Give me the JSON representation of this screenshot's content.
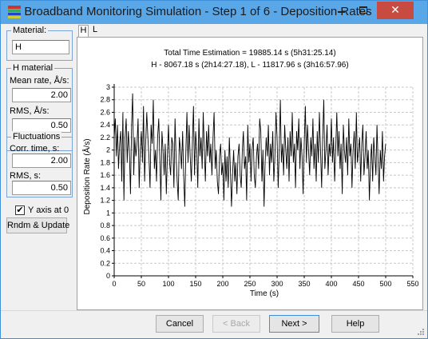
{
  "window": {
    "title": "Broadband Monitoring Simulation - Step 1 of 6 - Deposition Rates",
    "minimize_icon": "minimize-icon",
    "maximize_icon": "maximize-icon",
    "close_glyph": "✕",
    "titlebar_color": "#5aa7e8",
    "close_color": "#c74b40"
  },
  "left_panel": {
    "material_group": {
      "legend": "Material:",
      "value": "H"
    },
    "h_material_group": {
      "legend": "H material",
      "mean_rate_label": "Mean rate, Å/s:",
      "mean_rate_value": "2.00",
      "rms_label": "RMS, Å/s:",
      "rms_value": "0.50"
    },
    "fluctuations_group": {
      "legend": "Fluctuations",
      "corr_time_label": "Corr. time, s:",
      "corr_time_value": "2.00",
      "rms_label": "RMS, s:",
      "rms_value": "0.50"
    },
    "y_axis_checkbox": {
      "label": "Y axis at 0",
      "checked": true,
      "mark": "✔"
    },
    "rndm_button": "Rndm & Update"
  },
  "tabs": [
    {
      "label": "H",
      "active": true
    },
    {
      "label": "L",
      "active": false
    }
  ],
  "chart_data": {
    "type": "line",
    "title": "Total Time Estimation = 19885.14 s (5h31:25.14)",
    "subtitle": "H - 8067.18 s (2h14:27.18), L - 11817.96 s (3h16:57.96)",
    "xlabel": "Time (s)",
    "ylabel": "Deposition Rate (Å/s)",
    "xlim": [
      0,
      550
    ],
    "ylim": [
      0,
      3
    ],
    "x_ticks": [
      0,
      50,
      100,
      150,
      200,
      250,
      300,
      350,
      400,
      450,
      500,
      550
    ],
    "y_ticks": [
      0,
      0.2,
      0.4,
      0.6,
      0.8,
      1,
      1.2,
      1.4,
      1.6,
      1.8,
      2,
      2.2,
      2.4,
      2.6,
      2.8,
      3
    ],
    "y_tick_labels": [
      "0",
      "0.2",
      "0.4",
      "0.6",
      "0.8",
      "1",
      "1.2",
      "1.4",
      "1.6",
      "1.8",
      "2",
      "2.2",
      "2.4",
      "2.6",
      "2.8",
      "3"
    ],
    "grid": true,
    "line_color": "#000000",
    "series": [
      {
        "x_start": 0,
        "x_step": 2,
        "values": [
          2.2,
          2.5,
          1.9,
          2.4,
          1.7,
          2.1,
          2.3,
          1.5,
          2.6,
          1.2,
          2.2,
          2.5,
          1.8,
          2.3,
          2.0,
          1.3,
          2.4,
          2.9,
          1.6,
          2.2,
          1.9,
          2.1,
          2.5,
          1.4,
          2.0,
          2.3,
          1.8,
          2.7,
          1.5,
          2.1,
          2.6,
          2.2,
          1.9,
          1.4,
          2.4,
          2.1,
          2.8,
          1.7,
          2.0,
          1.5,
          2.2,
          2.5,
          1.9,
          1.2,
          2.3,
          2.0,
          1.6,
          2.1,
          1.3,
          1.9,
          2.4,
          1.8,
          1.6,
          2.2,
          2.1,
          1.4,
          2.5,
          1.9,
          1.5,
          1.2,
          2.2,
          2.0,
          1.7,
          2.3,
          1.6,
          1.1,
          2.0,
          2.6,
          1.8,
          2.4,
          1.9,
          1.5,
          2.1,
          2.7,
          1.6,
          2.3,
          2.0,
          1.4,
          2.5,
          1.9,
          2.2,
          1.7,
          2.6,
          2.0,
          1.5,
          2.3,
          1.9,
          2.4,
          1.8,
          2.1,
          1.6,
          2.2,
          2.6,
          1.7,
          2.0,
          1.5,
          1.3,
          1.9,
          2.1,
          1.6,
          1.8,
          1.2,
          2.0,
          1.5,
          1.9,
          1.4,
          2.2,
          1.7,
          1.1,
          1.6,
          2.0,
          1.5,
          1.8,
          1.3,
          1.9,
          2.1,
          1.6,
          1.4,
          2.0,
          2.3,
          1.7,
          1.9,
          1.2,
          2.4,
          1.8,
          2.1,
          1.5,
          2.0,
          2.2,
          1.6,
          1.4,
          1.9,
          2.1,
          1.7,
          2.5,
          2.3,
          1.5,
          2.0,
          1.1,
          1.8,
          2.2,
          1.9,
          2.4,
          1.6,
          2.1,
          1.8,
          2.3,
          1.5,
          1.9,
          2.6,
          2.2,
          1.4,
          2.0,
          2.8,
          1.8,
          2.1,
          1.6,
          2.4,
          2.0,
          1.7,
          2.2,
          1.5,
          2.3,
          1.9,
          2.6,
          1.8,
          2.1,
          1.4,
          2.3,
          2.0,
          2.5,
          1.7,
          2.2,
          1.9,
          1.3,
          2.1,
          2.7,
          1.8,
          2.4,
          2.0,
          1.6,
          2.2,
          1.9,
          2.5,
          1.7,
          2.1,
          1.5,
          2.3,
          1.8,
          2.6,
          2.0,
          1.4,
          2.2,
          2.8,
          1.7,
          2.0,
          2.4,
          1.6,
          2.1,
          1.9,
          2.5,
          1.8,
          2.2,
          1.5,
          2.0,
          2.6,
          1.9,
          2.3,
          1.7,
          2.1,
          1.3,
          2.4,
          2.0,
          1.8,
          2.2,
          1.6,
          2.5,
          1.9,
          2.1,
          1.4,
          2.0,
          2.3,
          1.7,
          2.6,
          1.8,
          2.0,
          2.2,
          1.5,
          2.1,
          2.4,
          1.6,
          1.9,
          2.3,
          1.7,
          2.0,
          1.2,
          1.8,
          2.1,
          1.5,
          2.2,
          1.9,
          1.6,
          2.4,
          1.8,
          1.3,
          2.0,
          1.7,
          2.3,
          1.5,
          1.9,
          2.1
        ]
      }
    ]
  },
  "footer": {
    "cancel_label": "Cancel",
    "back_label": "< Back",
    "next_label": "Next >",
    "help_label": "Help"
  }
}
